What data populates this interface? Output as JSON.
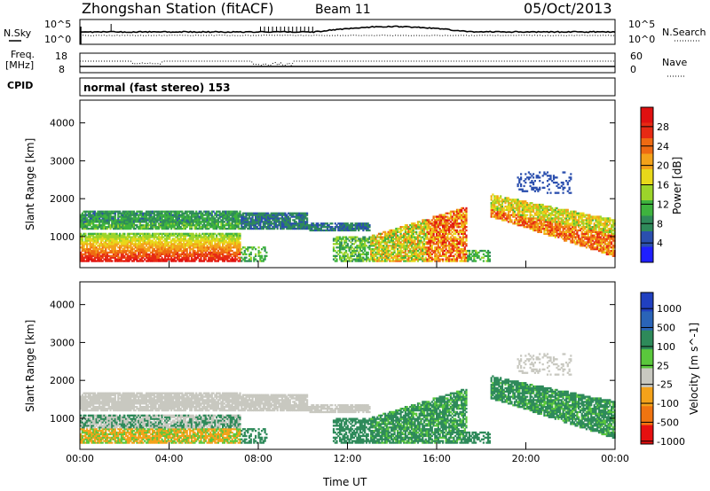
{
  "header": {
    "station": "Zhongshan Station (fitACF)",
    "beam": "Beam 11",
    "date": "05/Oct/2013"
  },
  "top_panels": {
    "nsky_label": "N.Sky",
    "nsearch_label": "N.Search",
    "noise_ticks_left": [
      "10^5",
      "10^0"
    ],
    "noise_ticks_right": [
      "10^5",
      "10^0"
    ],
    "freq_label_line1": "Freq.",
    "freq_label_line2": "[MHz]",
    "freq_ticks": [
      "18",
      "8"
    ],
    "nave_label": "Nave",
    "nave_ticks": [
      "60",
      "0"
    ],
    "cpid_label": "CPID",
    "cpid_text": "normal (fast stereo) 153"
  },
  "chart_data": [
    {
      "type": "heatmap",
      "title": "",
      "xlabel": "",
      "ylabel": "Slant Range [km]",
      "xlim": [
        0,
        24
      ],
      "ylim": [
        180,
        4600
      ],
      "y_ticks": [
        "1000",
        "2000",
        "3000",
        "4000"
      ],
      "colorbar": {
        "label": "Power [dB]",
        "range": [
          0,
          32
        ],
        "ticks": [
          "4",
          "8",
          "12",
          "16",
          "20",
          "24",
          "28"
        ],
        "colors": [
          "#1f1fff",
          "#2b4fae",
          "#2f8a5a",
          "#3eb33e",
          "#9cd42a",
          "#e8d81a",
          "#f3a21a",
          "#ee6a12",
          "#e62a14",
          "#e01010"
        ]
      }
    },
    {
      "type": "heatmap",
      "title": "",
      "xlabel": "Time UT",
      "ylabel": "Slant Range [km]",
      "xlim": [
        0,
        24
      ],
      "ylim": [
        180,
        4600
      ],
      "x_ticks": [
        "00:00",
        "04:00",
        "08:00",
        "12:00",
        "16:00",
        "20:00",
        "00:00"
      ],
      "y_ticks": [
        "1000",
        "2000",
        "3000",
        "4000"
      ],
      "colorbar": {
        "label": "Velocity [m s^-1]",
        "ticks": [
          "1000",
          "500",
          "100",
          "25",
          "-25",
          "-100",
          "-500",
          "-1000"
        ],
        "colors": [
          "#2040c0",
          "#2a64b8",
          "#2e8a5a",
          "#5ac83c",
          "#c8c8c0",
          "#f4a21a",
          "#f07410",
          "#e61010"
        ]
      }
    }
  ]
}
